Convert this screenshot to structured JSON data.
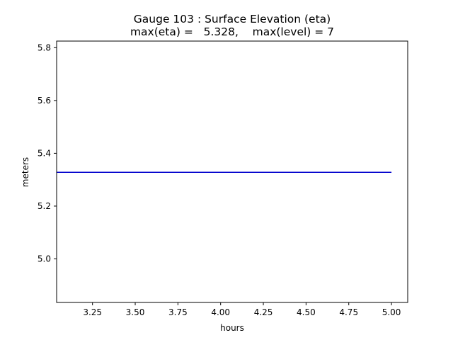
{
  "chart_data": {
    "type": "line",
    "title": "Gauge 103 : Surface Elevation (eta)",
    "subtitle": "max(eta) =   5.328,    max(level) = 7",
    "xlabel": "hours",
    "ylabel": "meters",
    "xlim": [
      3.04,
      5.095
    ],
    "ylim": [
      4.835,
      5.825
    ],
    "xticks": [
      3.25,
      3.5,
      3.75,
      4.0,
      4.25,
      4.5,
      4.75,
      5.0
    ],
    "xtick_labels": [
      "3.25",
      "3.50",
      "3.75",
      "4.00",
      "4.25",
      "4.50",
      "4.75",
      "5.00"
    ],
    "yticks": [
      5.0,
      5.2,
      5.4,
      5.6,
      5.8
    ],
    "ytick_labels": [
      "5.0",
      "5.2",
      "5.4",
      "5.6",
      "5.8"
    ],
    "grid": false,
    "series": [
      {
        "color": "#0000cc",
        "x": [
          3.04,
          3.5,
          4.0,
          4.5,
          5.0
        ],
        "y": [
          5.328,
          5.328,
          5.328,
          5.328,
          5.328
        ]
      }
    ]
  }
}
